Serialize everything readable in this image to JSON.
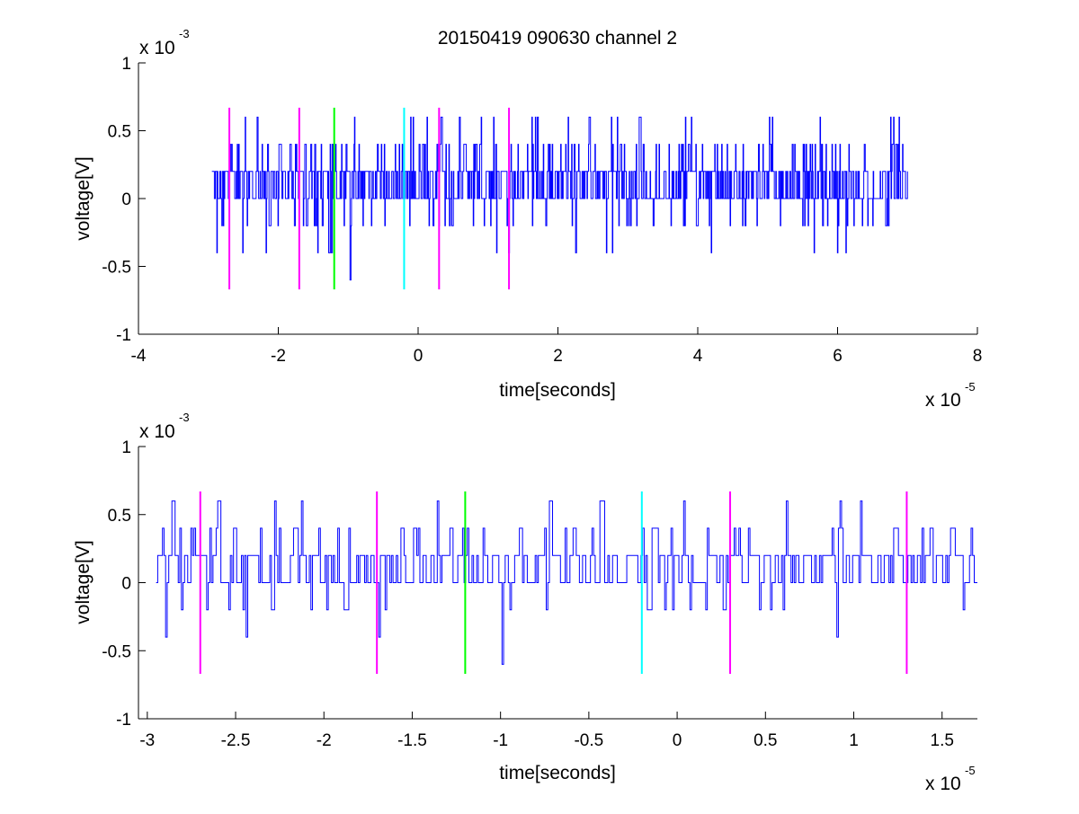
{
  "title": "20150419 090630 channel 2",
  "chart_data": [
    {
      "type": "line",
      "xlabel": "time[seconds]",
      "ylabel": "voltage[V]",
      "x_exponent_label": "x 10",
      "x_exponent_power": "-5",
      "y_exponent_label": "x 10",
      "y_exponent_power": "-3",
      "xlim": [
        -4e-05,
        8e-05
      ],
      "ylim": [
        -0.001,
        0.001
      ],
      "xticks": [
        -4e-05,
        -2e-05,
        0,
        2e-05,
        4e-05,
        6e-05,
        8e-05
      ],
      "xtick_labels": [
        "-4",
        "-2",
        "0",
        "2",
        "4",
        "6",
        "8"
      ],
      "yticks": [
        -0.001,
        -0.0005,
        0,
        0.0005,
        0.001
      ],
      "ytick_labels": [
        "-1",
        "-0.5",
        "0",
        "0.5",
        "1"
      ],
      "grid": false,
      "series": [
        {
          "color": "#0000ff",
          "x_start": -2.95e-05,
          "x_end": 7e-05,
          "y_quantum": 0.0002,
          "y_levels": [
            -0.0004,
            -0.0002,
            0,
            0.0002,
            0.0004,
            0.0006
          ],
          "y_extremes": [
            {
              "x": -9.7e-06,
              "y": -0.0006
            },
            {
              "x": 6e-05,
              "y": -0.0004
            },
            {
              "x": -2.3e-05,
              "y": 0.0006
            },
            {
              "x": 9e-06,
              "y": 0.0006
            },
            {
              "x": 2.85e-05,
              "y": 0.0006
            },
            {
              "x": 5.75e-05,
              "y": 0.0006
            }
          ]
        }
      ],
      "markers": [
        {
          "x": -2.7e-05,
          "color": "#ff00ff",
          "ymin": -0.00067,
          "ymax": 0.00067
        },
        {
          "x": -1.7e-05,
          "color": "#ff00ff",
          "ymin": -0.00067,
          "ymax": 0.00067
        },
        {
          "x": -1.2e-05,
          "color": "#00ff00",
          "ymin": -0.00067,
          "ymax": 0.00067
        },
        {
          "x": -2e-06,
          "color": "#00ffff",
          "ymin": -0.00067,
          "ymax": 0.00067
        },
        {
          "x": 3e-06,
          "color": "#ff00ff",
          "ymin": -0.00067,
          "ymax": 0.00067
        },
        {
          "x": 1.3e-05,
          "color": "#ff00ff",
          "ymin": -0.00067,
          "ymax": 0.00067
        }
      ]
    },
    {
      "type": "line",
      "xlabel": "time[seconds]",
      "ylabel": "voltage[V]",
      "x_exponent_label": "x 10",
      "x_exponent_power": "-5",
      "y_exponent_label": "x 10",
      "y_exponent_power": "-3",
      "xlim": [
        -3.05e-05,
        1.7e-05
      ],
      "ylim": [
        -0.001,
        0.001
      ],
      "xticks": [
        -3e-05,
        -2.5e-05,
        -2e-05,
        -1.5e-05,
        -1e-05,
        -5e-06,
        0,
        5e-06,
        1e-05,
        1.5e-05
      ],
      "xtick_labels": [
        "-3",
        "-2.5",
        "-2",
        "-1.5",
        "-1",
        "-0.5",
        "0",
        "0.5",
        "1",
        "1.5"
      ],
      "yticks": [
        -0.001,
        -0.0005,
        0,
        0.0005,
        0.001
      ],
      "ytick_labels": [
        "-1",
        "-0.5",
        "0",
        "0.5",
        "1"
      ],
      "grid": false,
      "series": [
        {
          "color": "#0000ff",
          "x_start": -2.95e-05,
          "x_end": 1.7e-05,
          "y_quantum": 0.0002,
          "y_levels": [
            -0.0004,
            -0.0002,
            0,
            0.0002,
            0.0004,
            0.0006
          ],
          "y_extremes": [
            {
              "x": -9.9e-06,
              "y": -0.0006
            },
            {
              "x": -2.28e-05,
              "y": 0.0006
            },
            {
              "x": -2.13e-05,
              "y": 0.0006
            },
            {
              "x": 9.2e-06,
              "y": 0.0006
            }
          ]
        }
      ],
      "markers": [
        {
          "x": -2.7e-05,
          "color": "#ff00ff",
          "ymin": -0.00067,
          "ymax": 0.00067
        },
        {
          "x": -1.7e-05,
          "color": "#ff00ff",
          "ymin": -0.00067,
          "ymax": 0.00067
        },
        {
          "x": -1.2e-05,
          "color": "#00ff00",
          "ymin": -0.00067,
          "ymax": 0.00067
        },
        {
          "x": -2e-06,
          "color": "#00ffff",
          "ymin": -0.00067,
          "ymax": 0.00067
        },
        {
          "x": 3e-06,
          "color": "#ff00ff",
          "ymin": -0.00067,
          "ymax": 0.00067
        },
        {
          "x": 1.3e-05,
          "color": "#ff00ff",
          "ymin": -0.00067,
          "ymax": 0.00067
        }
      ]
    }
  ]
}
